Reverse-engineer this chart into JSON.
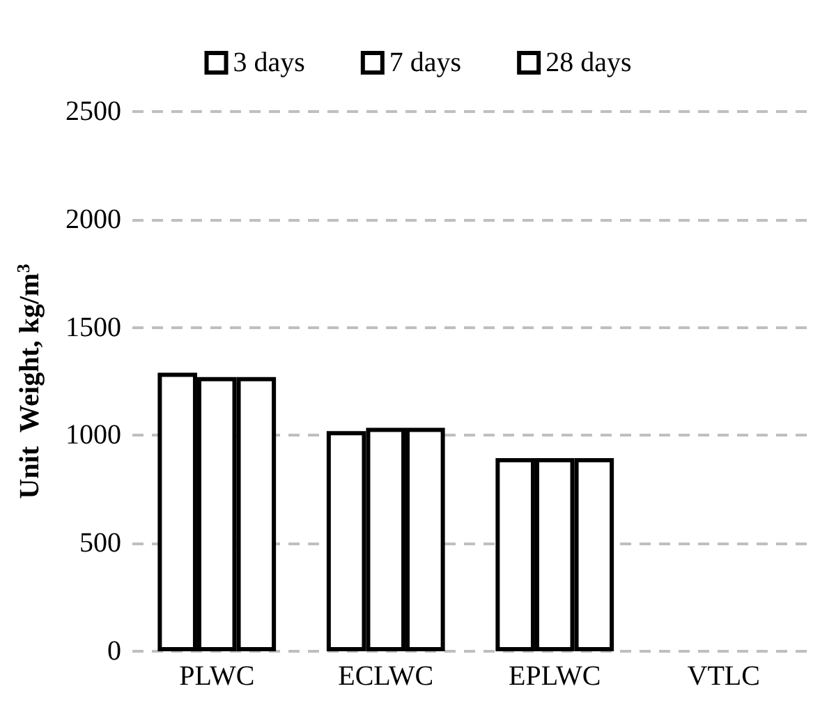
{
  "chart_data": {
    "type": "bar",
    "ylabel": "Unit  Weight, kg/m$^{3}$",
    "categories": [
      "PLWC",
      "ECLWC",
      "EPLWC",
      "VTLC"
    ],
    "series": [
      {
        "name": "3 days",
        "color": "#ffffff",
        "values": [
          1290,
          1020,
          895,
          null
        ]
      },
      {
        "name": "7 days",
        "color": "#ffffff",
        "values": [
          1270,
          1035,
          895,
          null
        ]
      },
      {
        "name": "28 days",
        "color": "#ffffff",
        "values": [
          1270,
          1035,
          895,
          null
        ]
      }
    ],
    "ylim": [
      0,
      2500
    ],
    "yticks": [
      0,
      500,
      1000,
      1500,
      2000,
      2500
    ],
    "grid": "y",
    "legend": "top"
  }
}
